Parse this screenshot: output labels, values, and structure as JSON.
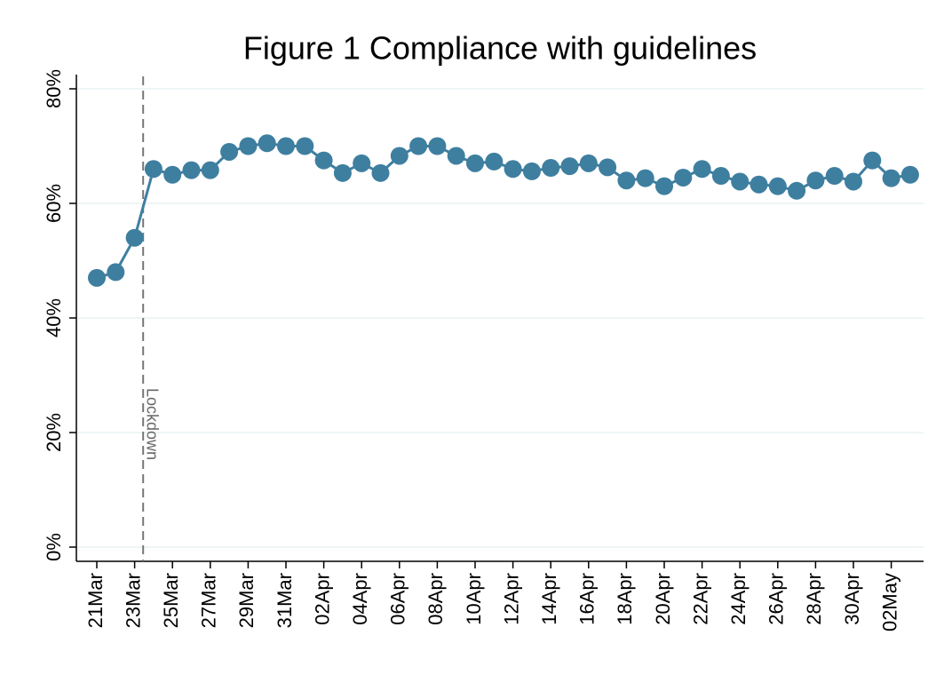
{
  "chart_data": {
    "type": "line",
    "title": "Figure 1 Compliance with guidelines",
    "categories": [
      "21Mar",
      null,
      "23Mar",
      null,
      "25Mar",
      null,
      "27Mar",
      null,
      "29Mar",
      null,
      "31Mar",
      null,
      "02Apr",
      null,
      "04Apr",
      null,
      "06Apr",
      null,
      "08Apr",
      null,
      "10Apr",
      null,
      "12Apr",
      null,
      "14Apr",
      null,
      "16Apr",
      null,
      "18Apr",
      null,
      "20Apr",
      null,
      "22Apr",
      null,
      "24Apr",
      null,
      "26Apr",
      null,
      "28Apr",
      null,
      "30Apr",
      null,
      "02May",
      null
    ],
    "series": [
      {
        "color": "#3e7fa0",
        "values": [
          47,
          48,
          54,
          66,
          65,
          65.8,
          65.8,
          69,
          70,
          70.5,
          70,
          70,
          67.5,
          65.3,
          67,
          65.3,
          68.3,
          70,
          70,
          68.3,
          67,
          67.3,
          66,
          65.6,
          66.2,
          66.5,
          67,
          66.3,
          64,
          64.4,
          63,
          64.5,
          66,
          64.8,
          63.8,
          63.3,
          63,
          62.2,
          64,
          64.8,
          63.8,
          67.5,
          64.4,
          65
        ]
      }
    ],
    "ylim": [
      0,
      80
    ],
    "yticks": [
      {
        "value": 0,
        "label": "0%"
      },
      {
        "value": 20,
        "label": "20%"
      },
      {
        "value": 40,
        "label": "40%"
      },
      {
        "value": 60,
        "label": "60%"
      },
      {
        "value": 80,
        "label": "80%"
      }
    ],
    "grid": true,
    "annotations": [
      {
        "text": "Lockdown"
      }
    ]
  }
}
